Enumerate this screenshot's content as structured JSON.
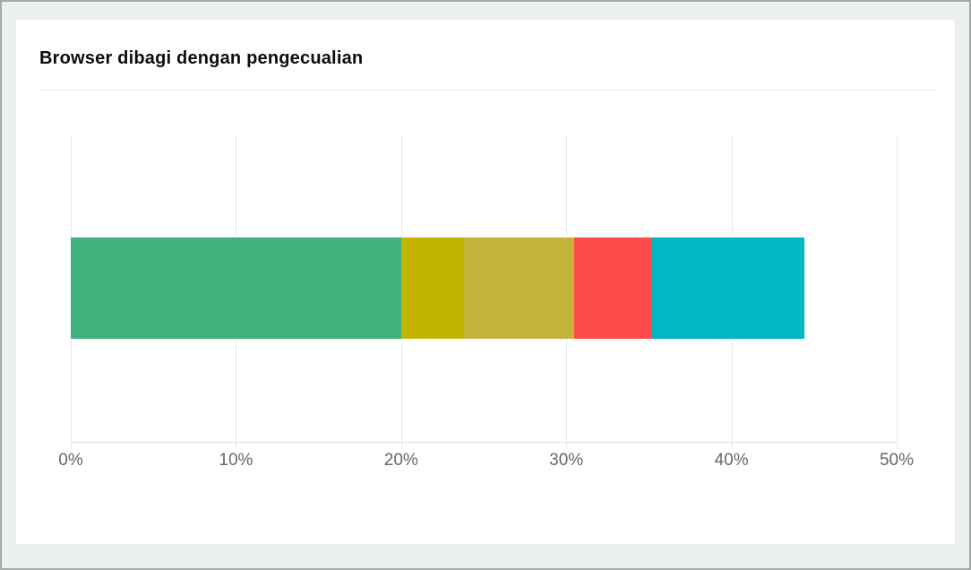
{
  "page": {
    "background_color": "#ebefef",
    "border_color": "#a4a9aa",
    "card_background_color": "#ffffff"
  },
  "header": {
    "title": "Browser dibagi dengan pengecualian"
  },
  "chart_data": {
    "type": "bar",
    "orientation": "horizontal",
    "stacked": true,
    "title": "Browser dibagi dengan pengecualian",
    "xlabel": "",
    "ylabel": "",
    "xlim": [
      0,
      50
    ],
    "x_tick_values": [
      0,
      10,
      20,
      30,
      40,
      50
    ],
    "x_tick_labels": [
      "0%",
      "10%",
      "20%",
      "30%",
      "40%",
      "50%"
    ],
    "grid": true,
    "legend": "none",
    "series": [
      {
        "name": "segment-1-green",
        "value": 20.0,
        "color": "#3fb17c"
      },
      {
        "name": "segment-2-dark-yellow",
        "value": 3.8,
        "color": "#c3b303"
      },
      {
        "name": "segment-3-olive",
        "value": 6.7,
        "color": "#c5b23a"
      },
      {
        "name": "segment-4-red",
        "value": 4.7,
        "color": "#fd4b49"
      },
      {
        "name": "segment-5-cyan",
        "value": 9.2,
        "color": "#00b7c6"
      }
    ],
    "bar_total_percent": 44.4,
    "gridline_color": "#e9e9e9",
    "axis_line_color": "#dfe2e2",
    "tick_label_color": "#65696c"
  }
}
